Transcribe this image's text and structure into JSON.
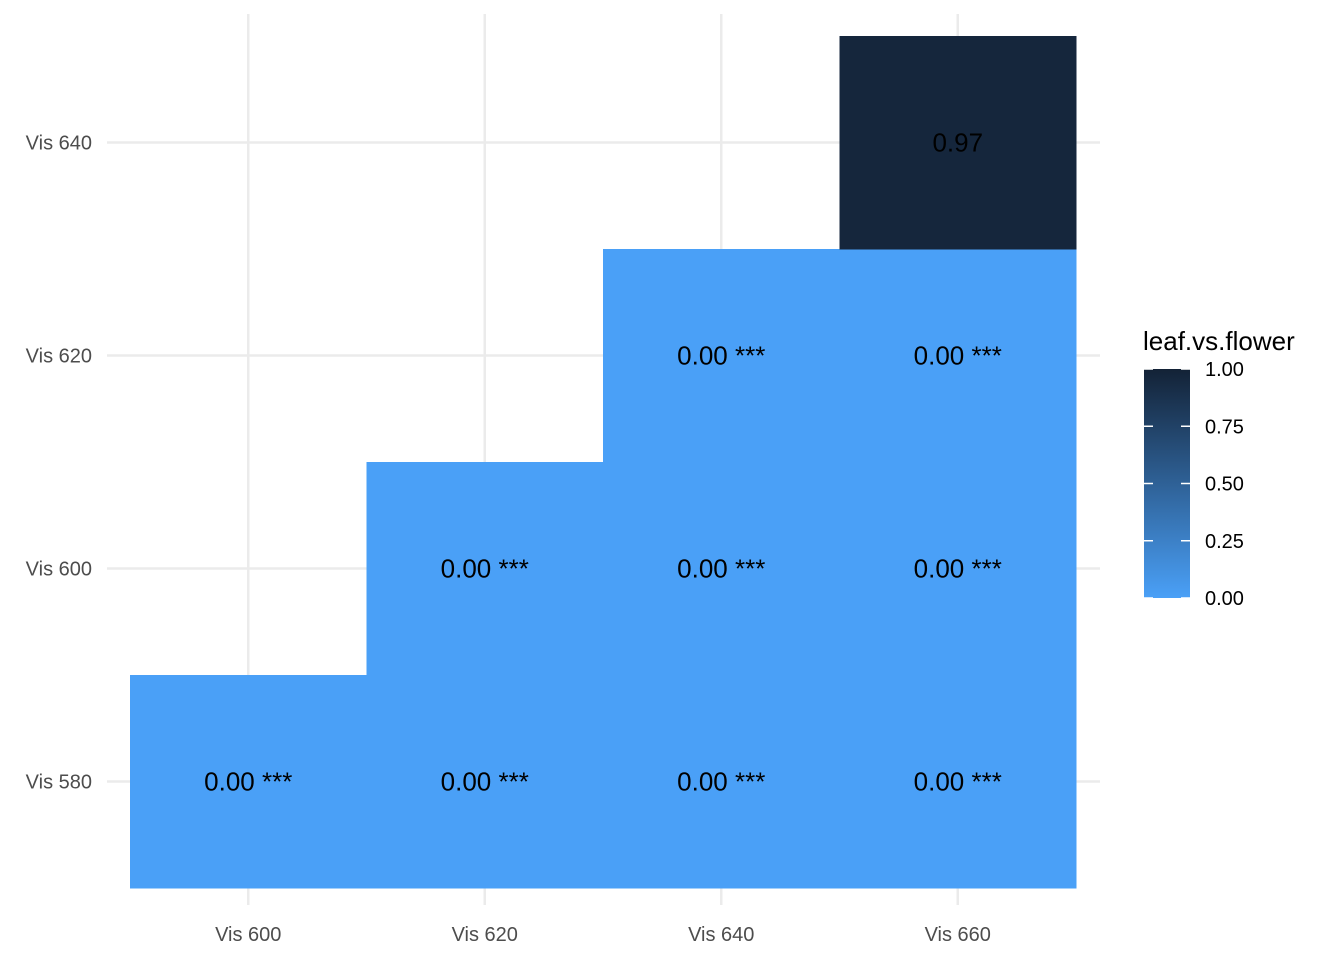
{
  "chart_data": {
    "type": "heatmap",
    "title": "",
    "xlabel": "",
    "ylabel": "",
    "x_categories": [
      "Vis 600",
      "Vis 620",
      "Vis 640",
      "Vis 660"
    ],
    "y_categories": [
      "Vis 580",
      "Vis 600",
      "Vis 620",
      "Vis 640"
    ],
    "cells": [
      {
        "x": "Vis 600",
        "y": "Vis 580",
        "value": 0.0,
        "label": "0.00 ***"
      },
      {
        "x": "Vis 620",
        "y": "Vis 580",
        "value": 0.0,
        "label": "0.00 ***"
      },
      {
        "x": "Vis 640",
        "y": "Vis 580",
        "value": 0.0,
        "label": "0.00 ***"
      },
      {
        "x": "Vis 660",
        "y": "Vis 580",
        "value": 0.0,
        "label": "0.00 ***"
      },
      {
        "x": "Vis 620",
        "y": "Vis 600",
        "value": 0.0,
        "label": "0.00 ***"
      },
      {
        "x": "Vis 640",
        "y": "Vis 600",
        "value": 0.0,
        "label": "0.00 ***"
      },
      {
        "x": "Vis 660",
        "y": "Vis 600",
        "value": 0.0,
        "label": "0.00 ***"
      },
      {
        "x": "Vis 640",
        "y": "Vis 620",
        "value": 0.0,
        "label": "0.00 ***"
      },
      {
        "x": "Vis 660",
        "y": "Vis 620",
        "value": 0.0,
        "label": "0.00 ***"
      },
      {
        "x": "Vis 660",
        "y": "Vis 640",
        "value": 0.97,
        "label": "0.97"
      }
    ],
    "legend": {
      "title": "leaf.vs.flower",
      "placement": "right",
      "range": [
        0,
        1
      ],
      "ticks": [
        "0.00",
        "0.25",
        "0.50",
        "0.75",
        "1.00"
      ],
      "color_low": "#4aa0f7",
      "color_high": "#132236"
    },
    "grid": true
  }
}
